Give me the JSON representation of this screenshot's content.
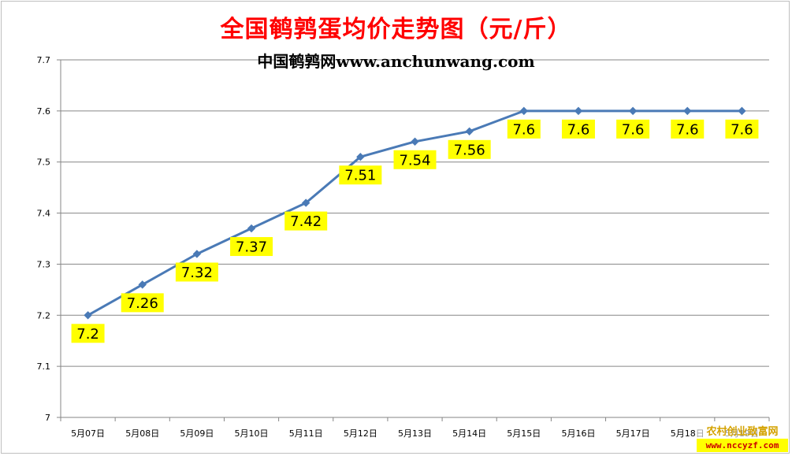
{
  "chart_data": {
    "type": "line",
    "title": "全国鹌鹑蛋均价走势图（元/斤）",
    "subtitle": "中国鹌鹑网www.anchunwang.com",
    "categories": [
      "5月07日",
      "5月08日",
      "5月09日",
      "5月10日",
      "5月11日",
      "5月12日",
      "5月13日",
      "5月14日",
      "5月15日",
      "5月16日",
      "5月17日",
      "5月18日",
      "5月19日"
    ],
    "series": [
      {
        "values": [
          7.2,
          7.26,
          7.32,
          7.37,
          7.42,
          7.51,
          7.54,
          7.56,
          7.6,
          7.6,
          7.6,
          7.6,
          7.6
        ],
        "labels": [
          "7.2",
          "7.26",
          "7.32",
          "7.37",
          "7.42",
          "7.51",
          "7.54",
          "7.56",
          "7.6",
          "7.6",
          "7.6",
          "7.6",
          "7.6"
        ],
        "color": "#4a7ab6"
      }
    ],
    "ylim": [
      7,
      7.7
    ],
    "yticks": [
      "7",
      "7.1",
      "7.2",
      "7.3",
      "7.4",
      "7.5",
      "7.6",
      "7.7"
    ],
    "xlabel": "",
    "ylabel": "",
    "grid": true,
    "legend": "none",
    "label_background": "#ffff00"
  },
  "watermark": {
    "line1": "农村创业致富网",
    "line2": "www.nccyzf.com"
  }
}
